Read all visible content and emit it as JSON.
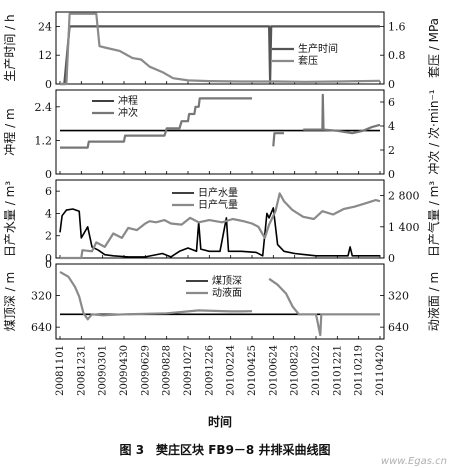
{
  "caption": {
    "number": "图 3",
    "title": "樊庄区块 FB9－8 井排采曲线图"
  },
  "watermark": "www.Egas.cn",
  "chart_data": {
    "shared_x": {
      "label": "时间",
      "ticks": [
        "20081101",
        "20081231",
        "20090301",
        "20090430",
        "20090629",
        "20090828",
        "20091027",
        "20091226",
        "20100224",
        "20100425",
        "20100624",
        "20100823",
        "20101022",
        "20101221",
        "20110219",
        "20110420"
      ]
    },
    "panels": [
      {
        "type": "line",
        "left_axis": {
          "label": "生产时间 / h",
          "ticks": [
            0,
            12,
            24
          ],
          "range": [
            0,
            30
          ]
        },
        "right_axis": {
          "label": "套压 / MPa",
          "ticks": [
            "0",
            "0.8",
            "1.6"
          ],
          "range": [
            0,
            2.0
          ]
        },
        "legend": [
          "生产时间",
          "套压"
        ],
        "series": [
          {
            "name": "生产时间",
            "axis": "left",
            "color": "#555555",
            "points": [
              [
                0.0,
                0
              ],
              [
                0.2,
                0
              ],
              [
                0.45,
                24
              ],
              [
                1.9,
                24
              ],
              [
                9.8,
                24
              ],
              [
                9.85,
                0.5
              ],
              [
                9.9,
                24
              ],
              [
                15.0,
                24
              ]
            ]
          },
          {
            "name": "套压",
            "axis": "right",
            "color": "#8a8a8a",
            "points": [
              [
                0.0,
                0
              ],
              [
                0.3,
                0
              ],
              [
                0.45,
                1.95
              ],
              [
                1.7,
                1.95
              ],
              [
                1.85,
                1.05
              ],
              [
                2.2,
                1.0
              ],
              [
                2.8,
                0.92
              ],
              [
                3.4,
                0.72
              ],
              [
                3.8,
                0.68
              ],
              [
                4.2,
                0.48
              ],
              [
                4.8,
                0.33
              ],
              [
                5.3,
                0.16
              ],
              [
                6.0,
                0.1
              ],
              [
                7.0,
                0.08
              ],
              [
                8.5,
                0.07
              ],
              [
                9.7,
                0.07
              ],
              [
                10.2,
                0.07
              ],
              [
                11.5,
                0.06
              ],
              [
                13.0,
                0.07
              ],
              [
                15.0,
                0.09
              ]
            ]
          }
        ]
      },
      {
        "type": "line",
        "left_axis": {
          "label": "冲程 / m",
          "ticks": [
            "0",
            "1.2",
            "2.4"
          ],
          "range": [
            0,
            3.0
          ]
        },
        "right_axis": {
          "label": "冲次 / 次·min⁻¹",
          "ticks": [
            0,
            2,
            4,
            6
          ],
          "range": [
            0,
            7
          ]
        },
        "legend": [
          "冲程",
          "冲次"
        ],
        "series": [
          {
            "name": "冲程",
            "axis": "left",
            "color": "#000000",
            "points": [
              [
                0.0,
                1.55
              ],
              [
                15.0,
                1.55
              ]
            ]
          },
          {
            "name": "冲次",
            "axis": "right",
            "color": "#777777",
            "points": [
              [
                0.0,
                2.2
              ],
              [
                1.3,
                2.2
              ],
              [
                1.35,
                2.7
              ],
              [
                3.0,
                2.7
              ],
              [
                3.05,
                3.2
              ],
              [
                4.9,
                3.2
              ],
              [
                5.0,
                3.8
              ],
              [
                5.6,
                3.8
              ],
              [
                5.7,
                4.4
              ],
              [
                6.0,
                4.4
              ],
              [
                6.05,
                5.0
              ],
              [
                6.3,
                5.0
              ],
              [
                6.35,
                5.6
              ],
              [
                6.5,
                5.6
              ],
              [
                6.55,
                6.3
              ],
              [
                9.0,
                6.3
              ],
              [
                null,
                null
              ],
              [
                10.0,
                2.3
              ],
              [
                10.05,
                3.4
              ],
              [
                10.5,
                3.4
              ],
              [
                null,
                null
              ],
              [
                11.4,
                3.7
              ],
              [
                12.3,
                3.7
              ],
              [
                12.32,
                6.6
              ],
              [
                12.35,
                3.7
              ],
              [
                13.0,
                3.6
              ],
              [
                13.7,
                3.4
              ],
              [
                14.2,
                3.6
              ],
              [
                14.6,
                3.9
              ],
              [
                15.0,
                4.1
              ]
            ]
          }
        ]
      },
      {
        "type": "line",
        "left_axis": {
          "label": "日产水量 / m³",
          "ticks": [
            0,
            2,
            4,
            6
          ],
          "range": [
            0,
            7
          ]
        },
        "right_axis": {
          "label": "日产气量 / m³",
          "ticks": [
            "0",
            "1 400",
            "2 800"
          ],
          "range": [
            0,
            3500
          ]
        },
        "legend": [
          "日产水量",
          "日产气量"
        ],
        "series": [
          {
            "name": "日产水量",
            "axis": "left",
            "color": "#000000",
            "points": [
              [
                0.0,
                2.3
              ],
              [
                0.1,
                3.8
              ],
              [
                0.3,
                4.3
              ],
              [
                0.6,
                4.4
              ],
              [
                0.9,
                4.2
              ],
              [
                1.0,
                1.8
              ],
              [
                1.3,
                2.8
              ],
              [
                1.5,
                1.0
              ],
              [
                1.8,
                0.7
              ],
              [
                2.1,
                0.3
              ],
              [
                2.5,
                0.2
              ],
              [
                3.2,
                0.1
              ],
              [
                4.0,
                0.1
              ],
              [
                4.8,
                0.4
              ],
              [
                5.2,
                0.1
              ],
              [
                5.6,
                0.6
              ],
              [
                6.0,
                0.9
              ],
              [
                6.4,
                0.6
              ],
              [
                6.5,
                3.2
              ],
              [
                6.6,
                0.8
              ],
              [
                7.0,
                0.6
              ],
              [
                7.5,
                0.6
              ],
              [
                7.8,
                3.6
              ],
              [
                7.9,
                0.6
              ],
              [
                8.5,
                0.6
              ],
              [
                9.2,
                0.5
              ],
              [
                9.5,
                0.2
              ],
              [
                9.7,
                4.0
              ],
              [
                9.8,
                3.6
              ],
              [
                10.0,
                4.5
              ],
              [
                10.2,
                1.2
              ],
              [
                10.5,
                0.6
              ],
              [
                11.0,
                0.4
              ],
              [
                11.5,
                0.3
              ],
              [
                12.0,
                0.2
              ],
              [
                13.0,
                0.2
              ],
              [
                13.5,
                0.2
              ],
              [
                13.6,
                1.0
              ],
              [
                13.7,
                0.2
              ],
              [
                15.0,
                0.2
              ]
            ]
          },
          {
            "name": "日产气量",
            "axis": "right",
            "color": "#8a8a8a",
            "points": [
              [
                0.0,
                0
              ],
              [
                1.0,
                0
              ],
              [
                1.05,
                350
              ],
              [
                1.5,
                300
              ],
              [
                1.7,
                700
              ],
              [
                2.1,
                500
              ],
              [
                2.5,
                1100
              ],
              [
                2.9,
                900
              ],
              [
                3.2,
                1350
              ],
              [
                3.6,
                1250
              ],
              [
                4.0,
                1550
              ],
              [
                4.2,
                1650
              ],
              [
                4.5,
                1600
              ],
              [
                4.9,
                1700
              ],
              [
                5.2,
                1550
              ],
              [
                5.7,
                1500
              ],
              [
                6.1,
                1800
              ],
              [
                6.5,
                1600
              ],
              [
                7.0,
                1700
              ],
              [
                7.6,
                1600
              ],
              [
                8.1,
                1750
              ],
              [
                8.6,
                1650
              ],
              [
                9.0,
                1550
              ],
              [
                9.3,
                1400
              ],
              [
                9.6,
                900
              ],
              [
                9.8,
                1500
              ],
              [
                10.1,
                2100
              ],
              [
                10.3,
                2900
              ],
              [
                10.5,
                2550
              ],
              [
                10.9,
                2150
              ],
              [
                11.4,
                1850
              ],
              [
                11.9,
                1750
              ],
              [
                12.3,
                2100
              ],
              [
                12.8,
                1950
              ],
              [
                13.3,
                2200
              ],
              [
                13.8,
                2300
              ],
              [
                14.3,
                2450
              ],
              [
                14.8,
                2600
              ],
              [
                15.0,
                2550
              ]
            ]
          }
        ]
      },
      {
        "type": "line",
        "left_axis": {
          "label": "煤顶深 / m",
          "ticks": [
            0,
            320,
            640
          ],
          "range": [
            0,
            760
          ]
        },
        "right_axis": {
          "label": "动液面 / m",
          "ticks": [
            320,
            640
          ],
          "range": [
            0,
            760
          ]
        },
        "legend": [
          "煤顶深",
          "动液面"
        ],
        "series": [
          {
            "name": "煤顶深",
            "axis": "left",
            "color": "#000000",
            "points": [
              [
                0.0,
                510
              ],
              [
                15.0,
                510
              ]
            ]
          },
          {
            "name": "动液面",
            "axis": "right",
            "color": "#8a8a8a",
            "points": [
              [
                0.0,
                80
              ],
              [
                0.4,
                130
              ],
              [
                0.7,
                230
              ],
              [
                0.9,
                330
              ],
              [
                1.1,
                500
              ],
              [
                1.3,
                560
              ],
              [
                1.5,
                510
              ],
              [
                2.0,
                520
              ],
              [
                3.0,
                510
              ],
              [
                4.0,
                505
              ],
              [
                5.0,
                500
              ],
              [
                6.0,
                480
              ],
              [
                6.5,
                470
              ],
              [
                7.2,
                475
              ],
              [
                8.0,
                480
              ],
              [
                8.5,
                480
              ],
              [
                9.0,
                478
              ],
              [
                null,
                null
              ],
              [
                9.8,
                150
              ],
              [
                10.2,
                210
              ],
              [
                10.6,
                300
              ],
              [
                10.9,
                430
              ],
              [
                11.2,
                510
              ],
              [
                12.0,
                510
              ],
              [
                12.2,
                720
              ],
              [
                12.25,
                510
              ],
              [
                13.0,
                510
              ],
              [
                15.0,
                510
              ]
            ]
          }
        ]
      }
    ]
  }
}
